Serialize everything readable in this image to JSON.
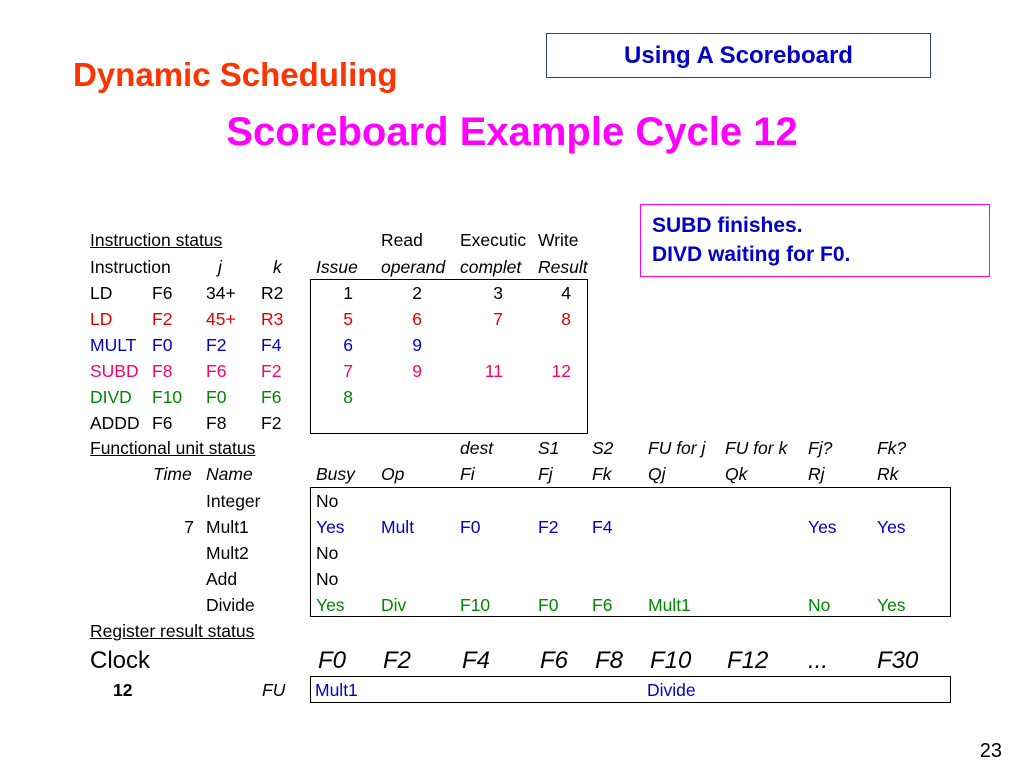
{
  "header": {
    "section_title": "Dynamic Scheduling",
    "topic_label": "Using A Scoreboard",
    "slide_title": "Scoreboard Example Cycle 12"
  },
  "note": {
    "line1": "SUBD finishes.",
    "line2": "DIVD waiting for F0."
  },
  "instruction_status": {
    "section_label": "Instruction status",
    "head_top": {
      "read": "Read",
      "execution": "Executic",
      "write": "Write"
    },
    "head_bottom": {
      "instruction": "Instruction",
      "j": "j",
      "k": "k",
      "issue": "Issue",
      "operands": "operand",
      "complete": "complet",
      "result": "Result"
    },
    "rows": [
      {
        "op": "LD",
        "dest": "F6",
        "j": "34+",
        "k": "R2",
        "issue": "1",
        "read": "2",
        "exec": "3",
        "write": "4",
        "color": "#000000"
      },
      {
        "op": "LD",
        "dest": "F2",
        "j": "45+",
        "k": "R3",
        "issue": "5",
        "read": "6",
        "exec": "7",
        "write": "8",
        "color": "#e00000"
      },
      {
        "op": "MULT",
        "dest": "F0",
        "j": "F2",
        "k": "F4",
        "issue": "6",
        "read": "9",
        "exec": "",
        "write": "",
        "color": "#0000cc"
      },
      {
        "op": "SUBD",
        "dest": "F8",
        "j": "F6",
        "k": "F2",
        "issue": "7",
        "read": "9",
        "exec": "11",
        "write": "12",
        "color": "#ff0066"
      },
      {
        "op": "DIVD",
        "dest": "F10",
        "j": "F0",
        "k": "F6",
        "issue": "8",
        "read": "",
        "exec": "",
        "write": "",
        "color": "#008800"
      },
      {
        "op": "ADDD",
        "dest": "F6",
        "j": "F8",
        "k": "F2",
        "issue": "",
        "read": "",
        "exec": "",
        "write": "",
        "color": "#000000"
      }
    ]
  },
  "functional_unit_status": {
    "section_label": "Functional unit status",
    "head_top": {
      "dest": "dest",
      "s1": "S1",
      "s2": "S2",
      "fu_j": "FU for j",
      "fu_k": "FU for k",
      "fj": "Fj?",
      "fk": "Fk?"
    },
    "head_bottom": {
      "time": "Time",
      "name": "Name",
      "busy": "Busy",
      "op": "Op",
      "fi": "Fi",
      "fj": "Fj",
      "fk": "Fk",
      "qj": "Qj",
      "qk": "Qk",
      "rj": "Rj",
      "rk": "Rk"
    },
    "rows": [
      {
        "time": "",
        "name": "Integer",
        "busy": "No",
        "op": "",
        "fi": "",
        "fj": "",
        "fk": "",
        "qj": "",
        "qk": "",
        "rj": "",
        "rk": "",
        "color": "#000000"
      },
      {
        "time": "7",
        "name": "Mult1",
        "busy": "Yes",
        "op": "Mult",
        "fi": "F0",
        "fj": "F2",
        "fk": "F4",
        "qj": "",
        "qk": "",
        "rj": "Yes",
        "rk": "Yes",
        "color": "#0000cc"
      },
      {
        "time": "",
        "name": "Mult2",
        "busy": "No",
        "op": "",
        "fi": "",
        "fj": "",
        "fk": "",
        "qj": "",
        "qk": "",
        "rj": "",
        "rk": "",
        "color": "#000000"
      },
      {
        "time": "",
        "name": "Add",
        "busy": "No",
        "op": "",
        "fi": "",
        "fj": "",
        "fk": "",
        "qj": "",
        "qk": "",
        "rj": "",
        "rk": "",
        "color": "#000000"
      },
      {
        "time": "",
        "name": "Divide",
        "busy": "Yes",
        "op": "Div",
        "fi": "F10",
        "fj": "F0",
        "fk": "F6",
        "qj": "Mult1",
        "qk": "",
        "rj": "No",
        "rk": "Yes",
        "color": "#008800"
      }
    ]
  },
  "register_result_status": {
    "section_label": "Register result status",
    "clock_label": "Clock",
    "clock_value": "12",
    "fu_label": "FU",
    "registers": [
      "F0",
      "F2",
      "F4",
      "F6",
      "F8",
      "F10",
      "F12",
      "...",
      "F30"
    ],
    "values": [
      "Mult1",
      "",
      "",
      "",
      "",
      "Divide",
      "",
      "",
      ""
    ],
    "value_color": "#0000cc"
  },
  "page_number": "23"
}
